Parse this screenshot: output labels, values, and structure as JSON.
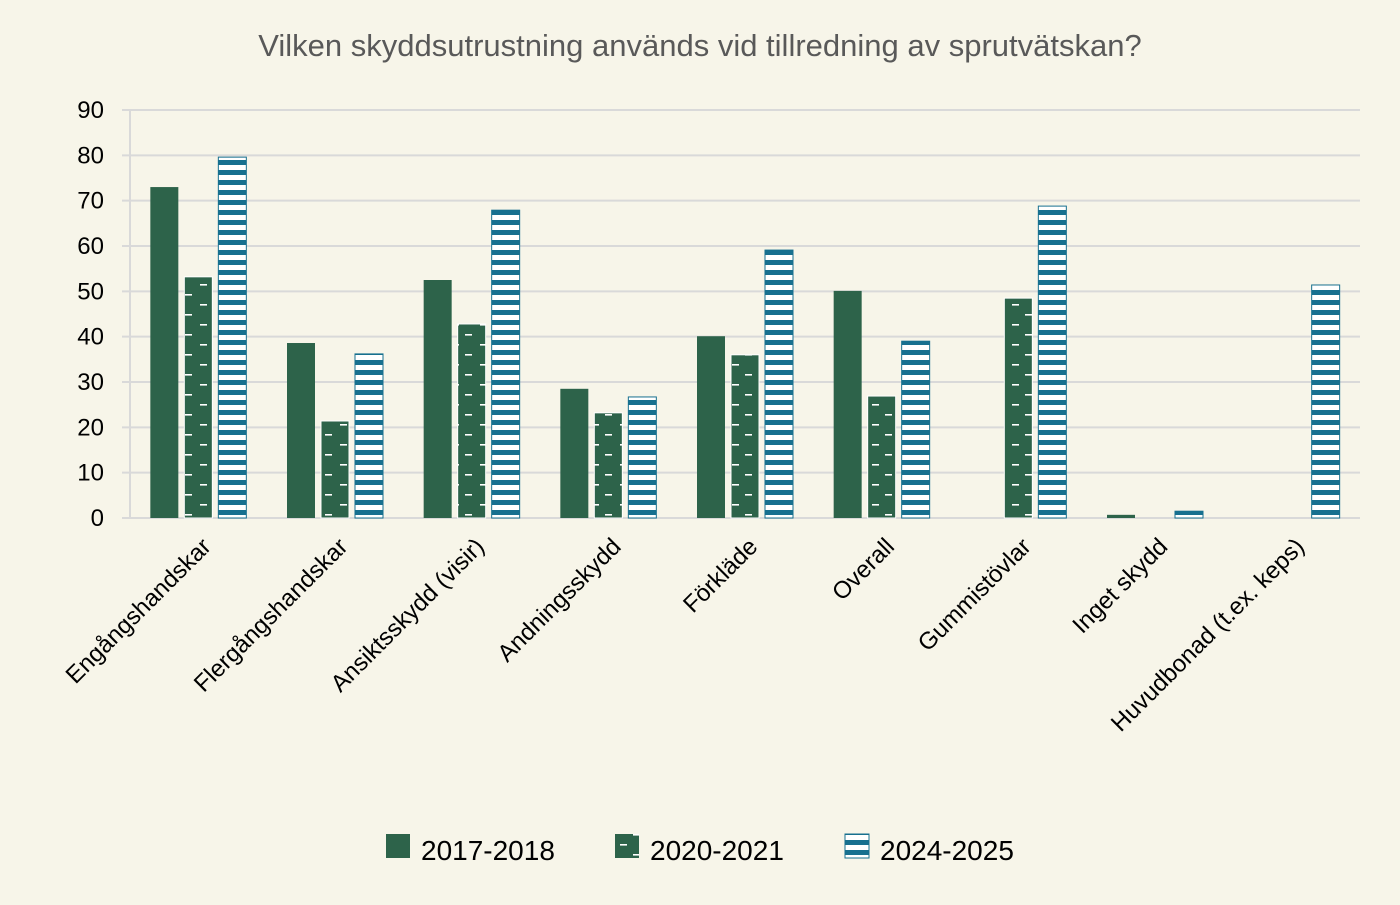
{
  "chart_data": {
    "type": "bar",
    "title": "Vilken skyddsutrustning används vid tillredning av sprutvätskan?",
    "xlabel": "",
    "ylabel": "",
    "ylim": [
      0,
      90
    ],
    "yticks": [
      0,
      10,
      20,
      30,
      40,
      50,
      60,
      70,
      80,
      90
    ],
    "grid": true,
    "legend_position": "bottom",
    "categories": [
      "Engångshandskar",
      "Flergångshandskar",
      "Ansiktsskydd (visir)",
      "Andningsskydd",
      "Förkläde",
      "Overall",
      "Gummistövlar",
      "Inget skydd",
      "Huvudbonad (t.ex. keps)"
    ],
    "series": [
      {
        "name": "2017-2018",
        "color": "#2d634a",
        "pattern": "solid",
        "values": [
          73.0,
          38.6,
          52.5,
          28.5,
          40.1,
          50.1,
          null,
          0.7,
          null
        ]
      },
      {
        "name": "2020-2021",
        "color": "#2d634a",
        "pattern": "dashes",
        "values": [
          53.2,
          21.4,
          42.8,
          23.2,
          36.0,
          26.9,
          48.5,
          null,
          null
        ]
      },
      {
        "name": "2024-2025",
        "color": "#17708f",
        "pattern": "horizontal-stripes",
        "values": [
          79.6,
          36.2,
          67.9,
          26.7,
          59.1,
          39.0,
          68.8,
          1.5,
          51.4
        ]
      }
    ]
  }
}
